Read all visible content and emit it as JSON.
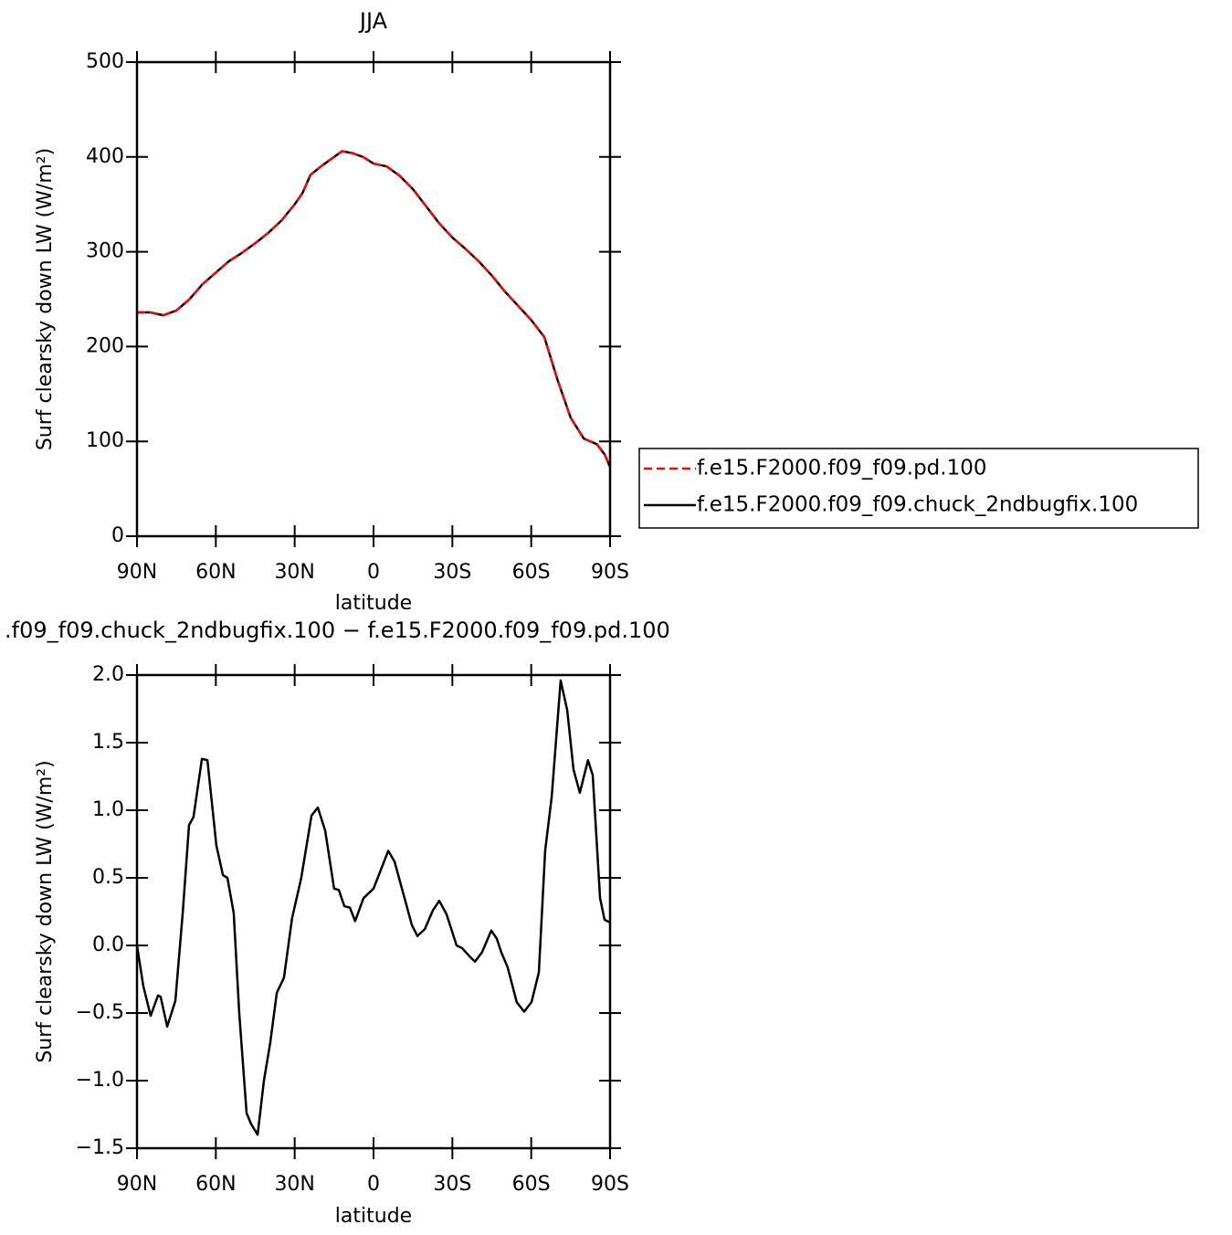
{
  "chart_data": [
    {
      "type": "line",
      "title": "JJA",
      "xlabel": "latitude",
      "ylabel": "Surf clearsky down LW (W/m²)",
      "x": [
        90,
        85,
        80,
        75,
        70,
        65,
        60,
        55,
        50,
        45,
        40,
        35,
        30,
        27,
        24,
        20,
        15,
        12,
        8,
        4,
        0,
        -5,
        -10,
        -15,
        -20,
        -25,
        -30,
        -35,
        -40,
        -45,
        -50,
        -55,
        -60,
        -65,
        -70,
        -75,
        -80,
        -85,
        -88,
        -90
      ],
      "series": [
        {
          "name": "f.e15.F2000.f09_f09.pd.100",
          "color": "#ff0000",
          "dashed": true,
          "values": [
            236,
            236,
            233,
            238,
            250,
            266,
            278,
            290,
            299,
            309,
            320,
            333,
            350,
            362,
            381,
            390,
            400,
            406,
            404,
            400,
            393,
            390,
            380,
            366,
            348,
            330,
            315,
            303,
            290,
            275,
            258,
            243,
            228,
            210,
            165,
            125,
            103,
            97,
            86,
            73
          ]
        },
        {
          "name": "f.e15.F2000.f09_f09.chuck_2ndbugfix.100",
          "color": "#000000",
          "dashed": false,
          "values": [
            236,
            236,
            233,
            238,
            250,
            266,
            278,
            290,
            299,
            309,
            320,
            333,
            350,
            362,
            381,
            390,
            400,
            406,
            404,
            400,
            393,
            390,
            380,
            366,
            348,
            330,
            315,
            303,
            290,
            275,
            258,
            243,
            228,
            210,
            165,
            125,
            103,
            97,
            86,
            73
          ]
        }
      ],
      "xlim": [
        90,
        -90
      ],
      "xticks": [
        {
          "value": 90,
          "label": "90N"
        },
        {
          "value": 60,
          "label": "60N"
        },
        {
          "value": 30,
          "label": "30N"
        },
        0,
        {
          "value": -30,
          "label": "30S"
        },
        {
          "value": -60,
          "label": "60S"
        },
        {
          "value": -90,
          "label": "90S"
        }
      ],
      "ylim": [
        0,
        500
      ],
      "yticks": [
        0,
        100,
        200,
        300,
        400,
        500
      ],
      "legend": "right"
    },
    {
      "type": "line",
      "title": ".f09_f09.chuck_2ndbugfix.100 − f.e15.F2000.f09_f09.pd.100",
      "xlabel": "latitude",
      "ylabel": "Surf clearsky down LW (W/m²)",
      "x": [
        90,
        87.6,
        84.8,
        82,
        81,
        78.5,
        75.4,
        72.6,
        70.2,
        68.5,
        65.3,
        63.2,
        59.8,
        57.3,
        55.6,
        53.2,
        51.1,
        48.3,
        46.6,
        44.1,
        41.7,
        39.3,
        36.8,
        34.1,
        31,
        27.5,
        23.6,
        21.2,
        18.4,
        15,
        13.2,
        11.1,
        9,
        7,
        3.8,
        0,
        -2.8,
        -5.6,
        -8,
        -11.8,
        -14.6,
        -16.7,
        -19.5,
        -22.6,
        -25,
        -27.8,
        -31.6,
        -33.7,
        -36.5,
        -38.6,
        -41.3,
        -44.8,
        -46.9,
        -48.6,
        -51,
        -54.5,
        -57.3,
        -60.1,
        -62.9,
        -65.3,
        -67.8,
        -71.2,
        -73.7,
        -76.1,
        -78.5,
        -81.6,
        -83.4,
        -86.2,
        -87.9,
        -90
      ],
      "series": [
        {
          "color": "#000000",
          "values": [
            0.0,
            -0.3,
            -0.52,
            -0.37,
            -0.38,
            -0.6,
            -0.41,
            0.24,
            0.89,
            0.95,
            1.38,
            1.37,
            0.74,
            0.52,
            0.5,
            0.24,
            -0.5,
            -1.24,
            -1.32,
            -1.4,
            -1.0,
            -0.72,
            -0.35,
            -0.24,
            0.2,
            0.5,
            0.96,
            1.02,
            0.85,
            0.42,
            0.41,
            0.29,
            0.28,
            0.18,
            0.35,
            0.42,
            0.56,
            0.7,
            0.62,
            0.35,
            0.15,
            0.07,
            0.12,
            0.26,
            0.33,
            0.23,
            0.0,
            -0.02,
            -0.08,
            -0.12,
            -0.05,
            0.11,
            0.05,
            -0.05,
            -0.16,
            -0.42,
            -0.49,
            -0.42,
            -0.2,
            0.7,
            1.1,
            1.96,
            1.74,
            1.3,
            1.13,
            1.37,
            1.26,
            0.35,
            0.19,
            0.17
          ]
        }
      ],
      "xlim": [
        90,
        -90
      ],
      "xticks": [
        {
          "value": 90,
          "label": "90N"
        },
        {
          "value": 60,
          "label": "60N"
        },
        {
          "value": 30,
          "label": "30N"
        },
        0,
        {
          "value": -30,
          "label": "30S"
        },
        {
          "value": -60,
          "label": "60S"
        },
        {
          "value": -90,
          "label": "90S"
        }
      ],
      "ylim": [
        -1.5,
        2.0
      ],
      "yticks": [
        {
          "value": -1.5,
          "label": "−1.5"
        },
        {
          "value": -1,
          "label": "−1.0"
        },
        {
          "value": -0.5,
          "label": "−0.5"
        },
        {
          "value": 0,
          "label": "0.0"
        },
        0.5,
        {
          "value": 1,
          "label": "1.0"
        },
        1.5,
        {
          "value": 2,
          "label": "2.0"
        }
      ]
    }
  ]
}
